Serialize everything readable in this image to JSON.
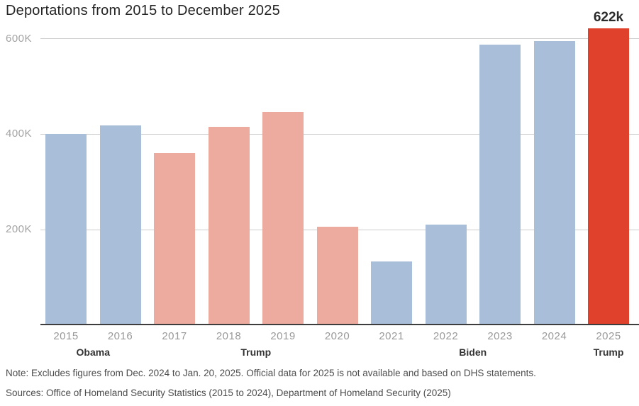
{
  "chart": {
    "title": "Deportations from 2015 to December 2025"
  },
  "chart_data": {
    "type": "bar",
    "title": "Deportations from 2015 to December 2025",
    "xlabel": "",
    "ylabel": "",
    "categories": [
      "2015",
      "2016",
      "2017",
      "2018",
      "2019",
      "2020",
      "2021",
      "2022",
      "2023",
      "2024",
      "2025"
    ],
    "values": [
      400000,
      418000,
      360000,
      415000,
      447000,
      206000,
      133000,
      210000,
      587000,
      595000,
      622000
    ],
    "bar_color_keys": [
      "blue",
      "blue",
      "salmon",
      "salmon",
      "salmon",
      "salmon",
      "blue",
      "blue",
      "blue",
      "blue",
      "red"
    ],
    "ylim": [
      0,
      650000
    ],
    "yticks": [
      {
        "value": 200000,
        "label": "200K"
      },
      {
        "value": 400000,
        "label": "400K"
      },
      {
        "value": 600000,
        "label": "600K"
      }
    ],
    "grid": "horizontal",
    "legend": "none",
    "annotations": [
      {
        "category": "2025",
        "text": "622k"
      }
    ],
    "president_groups": [
      {
        "label": "Obama",
        "from": "2015",
        "to": "2016"
      },
      {
        "label": "Trump",
        "from": "2017",
        "to": "2020"
      },
      {
        "label": "Biden",
        "from": "2021",
        "to": "2024"
      },
      {
        "label": "Trump",
        "from": "2025",
        "to": "2025"
      }
    ]
  },
  "colors": {
    "blue": "#a9bed8",
    "salmon": "#edaa9e",
    "red": "#df412c",
    "gridline": "#cccccc",
    "axis_line": "#3d3d3d",
    "title_text": "#242424",
    "tick_text": "#a3a3a3",
    "year_text": "#999999",
    "president_text": "#333333",
    "annotation_text": "#2b2b2b",
    "footer_text": "#4c4c4c"
  },
  "footer": {
    "note": "Note: Excludes figures from Dec. 2024 to Jan. 20, 2025. Official data for 2025 is not available and based on DHS statements.",
    "sources": "Sources: Office of Homeland Security Statistics (2015 to 2024), Department of Homeland Security (2025)"
  }
}
